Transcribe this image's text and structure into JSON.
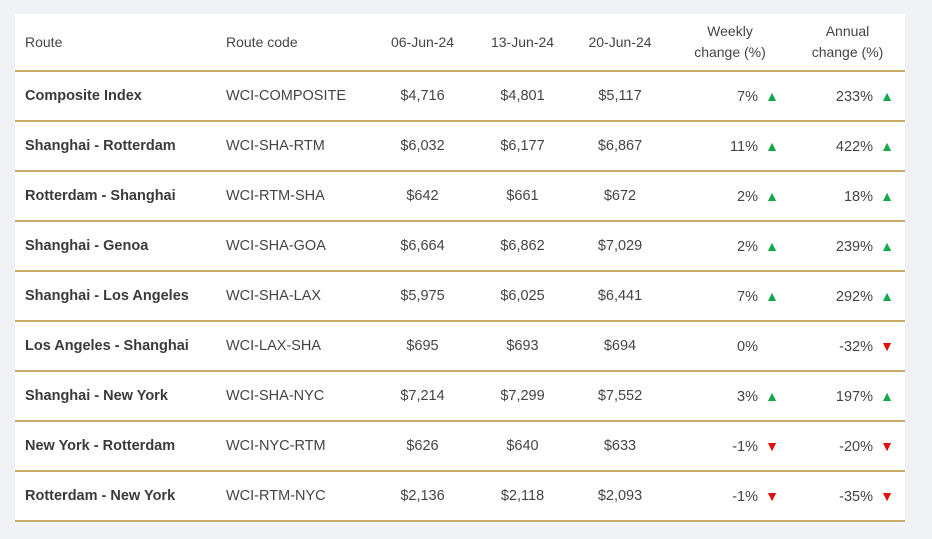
{
  "chart_data": {
    "type": "table",
    "columns": [
      "Route",
      "Route code",
      "06-Jun-24",
      "13-Jun-24",
      "20-Jun-24",
      "Weekly change (%)",
      "Annual change (%)"
    ],
    "header_lines": [
      [
        "Route"
      ],
      [
        "Route code"
      ],
      [
        "06-Jun-24"
      ],
      [
        "13-Jun-24"
      ],
      [
        "20-Jun-24"
      ],
      [
        "Weekly",
        "change (%)"
      ],
      [
        "Annual",
        "change (%)"
      ]
    ],
    "rows": [
      {
        "route": "Composite Index",
        "code": "WCI-COMPOSITE",
        "d1": "$4,716",
        "d2": "$4,801",
        "d3": "$5,117",
        "weekly": "7%",
        "weekly_dir": "up",
        "annual": "233%",
        "annual_dir": "up"
      },
      {
        "route": "Shanghai - Rotterdam",
        "code": "WCI-SHA-RTM",
        "d1": "$6,032",
        "d2": "$6,177",
        "d3": "$6,867",
        "weekly": "11%",
        "weekly_dir": "up",
        "annual": "422%",
        "annual_dir": "up"
      },
      {
        "route": "Rotterdam - Shanghai",
        "code": "WCI-RTM-SHA",
        "d1": "$642",
        "d2": "$661",
        "d3": "$672",
        "weekly": "2%",
        "weekly_dir": "up",
        "annual": "18%",
        "annual_dir": "up"
      },
      {
        "route": "Shanghai - Genoa",
        "code": "WCI-SHA-GOA",
        "d1": "$6,664",
        "d2": "$6,862",
        "d3": "$7,029",
        "weekly": "2%",
        "weekly_dir": "up",
        "annual": "239%",
        "annual_dir": "up"
      },
      {
        "route": "Shanghai - Los Angeles",
        "code": "WCI-SHA-LAX",
        "d1": "$5,975",
        "d2": "$6,025",
        "d3": "$6,441",
        "weekly": "7%",
        "weekly_dir": "up",
        "annual": "292%",
        "annual_dir": "up"
      },
      {
        "route": "Los Angeles - Shanghai",
        "code": "WCI-LAX-SHA",
        "d1": "$695",
        "d2": "$693",
        "d3": "$694",
        "weekly": "0%",
        "weekly_dir": "none",
        "annual": "-32%",
        "annual_dir": "down"
      },
      {
        "route": "Shanghai - New York",
        "code": "WCI-SHA-NYC",
        "d1": "$7,214",
        "d2": "$7,299",
        "d3": "$7,552",
        "weekly": "3%",
        "weekly_dir": "up",
        "annual": "197%",
        "annual_dir": "up"
      },
      {
        "route": "New York - Rotterdam",
        "code": "WCI-NYC-RTM",
        "d1": "$626",
        "d2": "$640",
        "d3": "$633",
        "weekly": "-1%",
        "weekly_dir": "down",
        "annual": "-20%",
        "annual_dir": "down"
      },
      {
        "route": "Rotterdam - New York",
        "code": "WCI-RTM-NYC",
        "d1": "$2,136",
        "d2": "$2,118",
        "d3": "$2,093",
        "weekly": "-1%",
        "weekly_dir": "down",
        "annual": "-35%",
        "annual_dir": "down"
      }
    ]
  },
  "icons": {
    "up": "triangle-up-icon",
    "down": "triangle-down-icon"
  },
  "colors": {
    "up": "#14a84a",
    "down": "#e01010",
    "rule": "#c8ac68",
    "background": "#f0f2f5"
  }
}
